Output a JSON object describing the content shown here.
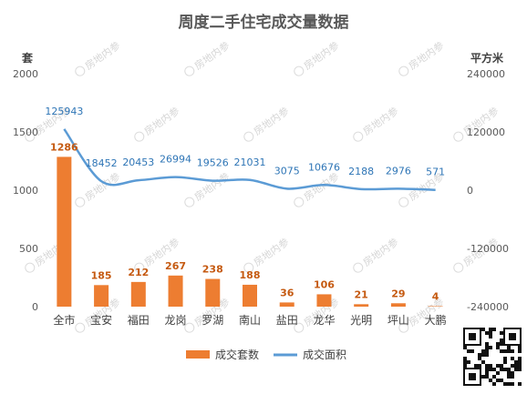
{
  "chart_data": {
    "type": "bar",
    "title": "周度二手住宅成交量数据",
    "categories": [
      "全市",
      "宝安",
      "福田",
      "龙岗",
      "罗湖",
      "南山",
      "盐田",
      "龙华",
      "光明",
      "坪山",
      "大鹏"
    ],
    "series": [
      {
        "name": "成交套数",
        "type": "bar",
        "axis": "left",
        "color": "#ed7d31",
        "values": [
          1286,
          185,
          212,
          267,
          238,
          188,
          36,
          106,
          21,
          29,
          4
        ]
      },
      {
        "name": "成交面积",
        "type": "line",
        "axis": "right",
        "color": "#5b9bd5",
        "values": [
          125943,
          18452,
          20453,
          26994,
          19526,
          21031,
          3075,
          10676,
          2188,
          2976,
          571
        ]
      }
    ],
    "y_left": {
      "label": "套",
      "min": 0,
      "max": 2000,
      "ticks": [
        "0",
        "500",
        "1000",
        "1500",
        "2000"
      ]
    },
    "y_right": {
      "label": "平方米",
      "min": -240000,
      "max": 240000,
      "ticks": [
        "-240000",
        "-120000",
        "0",
        "120000",
        "240000"
      ]
    },
    "grid": false,
    "legend_position": "bottom"
  },
  "watermark": "房地内参"
}
